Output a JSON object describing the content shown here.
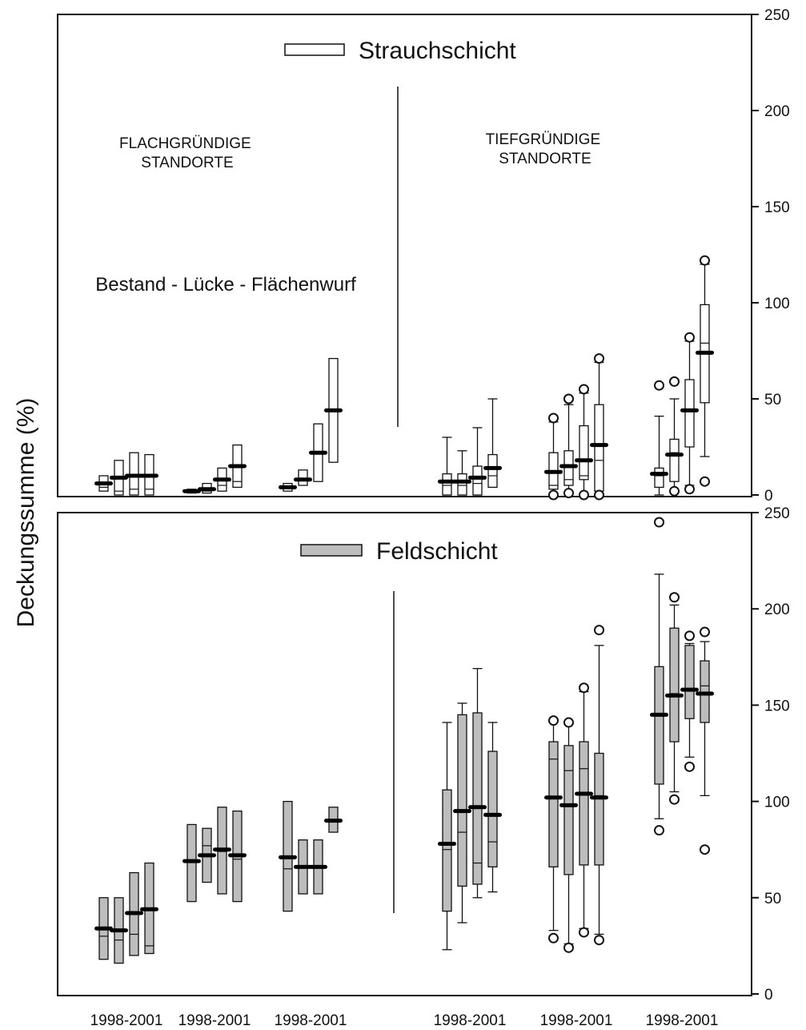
{
  "chart_data": [
    {
      "panel": "top",
      "type": "box",
      "title": "Strauchschicht",
      "ylabel": "Deckungssumme (%)",
      "ylim": [
        0,
        250
      ],
      "yticks": [
        0,
        50,
        100,
        150,
        200,
        250
      ],
      "y_axis_side": "right",
      "box_fill": "#ffffff",
      "group_labels": [
        "FLACHGRÜNDIGE\nSTANDORTE",
        "TIEFGRÜNDIGE\nSTANDORTE"
      ],
      "sub_label": "Bestand - Lücke - Flächenwurf",
      "categories": [
        "1998-2001",
        "1998-2001",
        "1998-2001",
        "1998-2001",
        "1998-2001",
        "1998-2001"
      ],
      "groups": [
        {
          "boxes": [
            {
              "q1": 2,
              "q3": 10,
              "median": 4,
              "mean": 6
            },
            {
              "q1": 0,
              "q3": 18,
              "median": 2,
              "mean": 9
            },
            {
              "q1": 0,
              "q3": 22,
              "median": 3,
              "mean": 10
            },
            {
              "q1": 0,
              "q3": 21,
              "median": 3,
              "mean": 10
            }
          ]
        },
        {
          "boxes": [
            {
              "q1": 1,
              "q3": 3,
              "median": 2,
              "mean": 2
            },
            {
              "q1": 1,
              "q3": 6,
              "median": 2,
              "mean": 3
            },
            {
              "q1": 2,
              "q3": 14,
              "median": 5,
              "mean": 8
            },
            {
              "q1": 4,
              "q3": 26,
              "median": 7,
              "mean": 15
            }
          ]
        },
        {
          "boxes": [
            {
              "q1": 2,
              "q3": 6,
              "median": 4,
              "mean": 4
            },
            {
              "q1": 5,
              "q3": 13,
              "median": 8,
              "mean": 8
            },
            {
              "q1": 7,
              "q3": 37,
              "median": 22,
              "mean": 22
            },
            {
              "q1": 17,
              "q3": 71,
              "median": 44,
              "mean": 44
            }
          ]
        },
        {
          "boxes": [
            {
              "q1": 0,
              "q3": 11,
              "median": 5,
              "mean": 7,
              "whisker_low": 0,
              "whisker_high": 30
            },
            {
              "q1": 0,
              "q3": 11,
              "median": 5,
              "mean": 7,
              "whisker_low": 0,
              "whisker_high": 23
            },
            {
              "q1": 0,
              "q3": 15,
              "median": 6,
              "mean": 9,
              "whisker_low": 0,
              "whisker_high": 35
            },
            {
              "q1": 4,
              "q3": 21,
              "median": 10,
              "mean": 14,
              "whisker_low": 4,
              "whisker_high": 50
            }
          ]
        },
        {
          "boxes": [
            {
              "q1": 3,
              "q3": 22,
              "median": 5,
              "mean": 12,
              "whisker_low": 0,
              "whisker_high": 38,
              "outliers": [
                0,
                40
              ]
            },
            {
              "q1": 5,
              "q3": 23,
              "median": 8,
              "mean": 15,
              "whisker_low": 1,
              "whisker_high": 47,
              "outliers": [
                1,
                50
              ]
            },
            {
              "q1": 8,
              "q3": 36,
              "median": 10,
              "mean": 18,
              "whisker_low": 0,
              "whisker_high": 53,
              "outliers": [
                0,
                55
              ]
            },
            {
              "q1": 2,
              "q3": 47,
              "median": 18,
              "mean": 26,
              "whisker_low": 1,
              "whisker_high": 69,
              "outliers": [
                0,
                71
              ]
            }
          ]
        },
        {
          "boxes": [
            {
              "q1": 4,
              "q3": 14,
              "median": 10,
              "mean": 11,
              "whisker_low": 0,
              "whisker_high": 41,
              "outliers": [
                57
              ]
            },
            {
              "q1": 7,
              "q3": 29,
              "median": 22,
              "mean": 21,
              "whisker_low": 2,
              "whisker_high": 50,
              "outliers": [
                2,
                59
              ]
            },
            {
              "q1": 25,
              "q3": 60,
              "median": 44,
              "mean": 44,
              "whisker_low": 5,
              "whisker_high": 80,
              "outliers": [
                3,
                82
              ]
            },
            {
              "q1": 48,
              "q3": 99,
              "median": 79,
              "mean": 74,
              "whisker_low": 20,
              "whisker_high": 120,
              "outliers": [
                7,
                122
              ]
            }
          ]
        }
      ]
    },
    {
      "panel": "bottom",
      "type": "box",
      "title": "Feldschicht",
      "ylabel": "Deckungssumme (%)",
      "ylim": [
        0,
        250
      ],
      "yticks": [
        0,
        50,
        100,
        150,
        200,
        250
      ],
      "y_axis_side": "right",
      "box_fill": "#bdbdbd",
      "categories": [
        "1998-2001",
        "1998-2001",
        "1998-2001",
        "1998-2001",
        "1998-2001",
        "1998-2001"
      ],
      "groups": [
        {
          "boxes": [
            {
              "q1": 18,
              "q3": 50,
              "median": 30,
              "mean": 34
            },
            {
              "q1": 16,
              "q3": 50,
              "median": 28,
              "mean": 33
            },
            {
              "q1": 20,
              "q3": 63,
              "median": 31,
              "mean": 42
            },
            {
              "q1": 21,
              "q3": 68,
              "median": 25,
              "mean": 44
            }
          ]
        },
        {
          "boxes": [
            {
              "q1": 48,
              "q3": 88,
              "median": 69,
              "mean": 69
            },
            {
              "q1": 58,
              "q3": 86,
              "median": 77,
              "mean": 72
            },
            {
              "q1": 52,
              "q3": 97,
              "median": 74,
              "mean": 75
            },
            {
              "q1": 48,
              "q3": 95,
              "median": 70,
              "mean": 72
            }
          ]
        },
        {
          "boxes": [
            {
              "q1": 43,
              "q3": 100,
              "median": 65,
              "mean": 71
            },
            {
              "q1": 52,
              "q3": 80,
              "median": 66,
              "mean": 66
            },
            {
              "q1": 52,
              "q3": 80,
              "median": 66,
              "mean": 66
            },
            {
              "q1": 84,
              "q3": 97,
              "median": 90,
              "mean": 90
            }
          ]
        },
        {
          "boxes": [
            {
              "q1": 43,
              "q3": 106,
              "median": 75,
              "mean": 78,
              "whisker_low": 23,
              "whisker_high": 141
            },
            {
              "q1": 56,
              "q3": 145,
              "median": 84,
              "mean": 95,
              "whisker_low": 37,
              "whisker_high": 151
            },
            {
              "q1": 57,
              "q3": 146,
              "median": 68,
              "mean": 97,
              "whisker_low": 50,
              "whisker_high": 169
            },
            {
              "q1": 66,
              "q3": 126,
              "median": 79,
              "mean": 93,
              "whisker_low": 53,
              "whisker_high": 141
            }
          ]
        },
        {
          "boxes": [
            {
              "q1": 66,
              "q3": 131,
              "median": 122,
              "mean": 102,
              "whisker_low": 33,
              "whisker_high": 141,
              "outliers": [
                29,
                142
              ]
            },
            {
              "q1": 62,
              "q3": 129,
              "median": 116,
              "mean": 98,
              "whisker_low": 26,
              "whisker_high": 140,
              "outliers": [
                24,
                141
              ]
            },
            {
              "q1": 67,
              "q3": 131,
              "median": 117,
              "mean": 104,
              "whisker_low": 34,
              "whisker_high": 157,
              "outliers": [
                32,
                159
              ]
            },
            {
              "q1": 67,
              "q3": 125,
              "median": 103,
              "mean": 102,
              "whisker_low": 31,
              "whisker_high": 181,
              "outliers": [
                28,
                189
              ]
            }
          ]
        },
        {
          "boxes": [
            {
              "q1": 109,
              "q3": 170,
              "median": 145,
              "mean": 145,
              "whisker_low": 91,
              "whisker_high": 218,
              "outliers": [
                85,
                245
              ]
            },
            {
              "q1": 131,
              "q3": 190,
              "median": 156,
              "mean": 155,
              "whisker_low": 105,
              "whisker_high": 202,
              "outliers": [
                101,
                206
              ]
            },
            {
              "q1": 143,
              "q3": 181,
              "median": 158,
              "mean": 158,
              "whisker_low": 123,
              "whisker_high": 182,
              "outliers": [
                118,
                186
              ]
            },
            {
              "q1": 141,
              "q3": 173,
              "median": 160,
              "mean": 156,
              "whisker_low": 103,
              "whisker_high": 183,
              "outliers": [
                75,
                188
              ]
            }
          ]
        }
      ]
    }
  ]
}
